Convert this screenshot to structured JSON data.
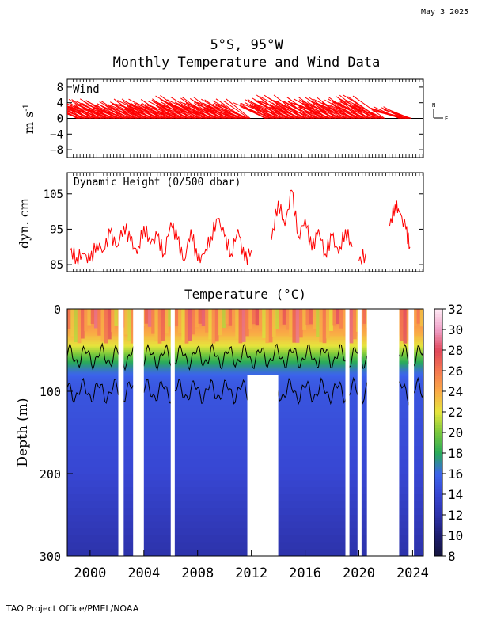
{
  "header": {
    "date": "May  3 2025",
    "title_location": "5°S, 95°W",
    "title_main": "Monthly Temperature and Wind Data"
  },
  "footer": {
    "credit": "TAO Project Office/PMEL/NOAA"
  },
  "chart_data": [
    {
      "type": "line",
      "panel": "wind",
      "title": "Wind",
      "ylabel": "m s",
      "ylabel_exp": "-1",
      "ylim": [
        -10,
        10
      ],
      "yticks": [
        8,
        4,
        0,
        -4,
        -8
      ],
      "ytick_labels": [
        "8",
        "4",
        "0",
        "−4",
        "−8"
      ],
      "compass": {
        "north": "N",
        "east": "E"
      },
      "color": "#ff0000",
      "note": "Monthly wind vectors (stick plot), predominantly southeasterly",
      "x_year": [
        1999.0,
        1999.5,
        2000.0,
        2000.5,
        2001.0,
        2001.5,
        2002.0,
        2002.5,
        2003.0,
        2003.5,
        2004.0,
        2004.5,
        2005.0,
        2005.5,
        2006.0,
        2006.5,
        2007.0,
        2007.5,
        2008.0,
        2008.5,
        2009.0,
        2009.5,
        2010.0,
        2010.5,
        2011.0,
        2011.5,
        2013.0,
        2013.5,
        2014.0,
        2014.5,
        2015.0,
        2015.5,
        2016.0,
        2016.5,
        2017.0,
        2017.5,
        2018.0,
        2018.5,
        2019.0,
        2019.5,
        2020.0,
        2020.5,
        2021.0,
        2021.5,
        2023.0,
        2023.5
      ],
      "u": [
        -3.5,
        -4.5,
        -3.0,
        -4.5,
        -3.5,
        -4.5,
        -3.0,
        -4.5,
        -3.5,
        -4.0,
        -3.0,
        -4.5,
        -3.5,
        -4.5,
        -3.0,
        -4.5,
        -3.5,
        -5.0,
        -3.0,
        -4.5,
        -3.5,
        -4.5,
        -3.0,
        -4.5,
        -3.5,
        -4.0,
        -3.0,
        -4.5,
        -3.5,
        -4.5,
        -3.0,
        -5.0,
        -3.5,
        -4.5,
        -3.0,
        -4.5,
        -3.5,
        -4.5,
        -3.0,
        -4.5,
        -3.5,
        -4.5,
        -3.0,
        -5.0,
        -3.5,
        -4.0
      ],
      "v": [
        4.0,
        5.0,
        3.5,
        5.0,
        4.0,
        5.0,
        3.5,
        4.5,
        4.0,
        5.0,
        3.5,
        5.0,
        4.0,
        5.0,
        3.5,
        5.0,
        4.5,
        6.0,
        4.0,
        5.5,
        4.0,
        5.5,
        3.5,
        5.0,
        4.0,
        5.0,
        4.0,
        5.0,
        4.5,
        6.0,
        4.0,
        6.0,
        4.5,
        5.5,
        4.0,
        5.5,
        4.5,
        5.5,
        4.0,
        5.5,
        4.5,
        6.0,
        4.0,
        6.0,
        3.0,
        2.5
      ]
    },
    {
      "type": "line",
      "panel": "dynamic_height",
      "title": "Dynamic Height (0/500 dbar)",
      "ylabel": "dyn. cm",
      "ylim": [
        83,
        111
      ],
      "yticks": [
        105,
        95,
        85
      ],
      "ytick_labels": [
        "105",
        "95",
        "85"
      ],
      "color": "#ff0000",
      "segments": [
        {
          "x": [
            1998.5,
            1999.0,
            1999.5,
            2000.0,
            2000.5,
            2001.0,
            2001.5,
            2002.0,
            2002.5,
            2003.0,
            2003.5,
            2004.0,
            2004.5,
            2005.0,
            2005.5,
            2006.0,
            2006.5,
            2007.0,
            2007.5,
            2008.0,
            2008.5,
            2009.0,
            2009.5,
            2010.0,
            2010.5,
            2011.0,
            2011.5,
            2012.0
          ],
          "y": [
            89,
            87,
            88,
            86,
            91,
            89,
            94,
            90,
            96,
            92,
            88,
            96,
            91,
            93,
            88,
            97,
            92,
            86,
            95,
            86,
            88,
            93,
            98,
            93,
            88,
            95,
            86,
            89
          ]
        },
        {
          "x": [
            2013.5,
            2014.0,
            2014.5,
            2015.0,
            2015.5,
            2016.0,
            2016.5,
            2017.0,
            2017.5,
            2018.0,
            2018.5,
            2019.0,
            2019.5
          ],
          "y": [
            92,
            103,
            96,
            106,
            93,
            98,
            89,
            95,
            88,
            93,
            88,
            95,
            90
          ]
        },
        {
          "x": [
            2020.0,
            2020.5
          ],
          "y": [
            86,
            88
          ]
        },
        {
          "x": [
            2022.3,
            2022.7,
            2023.0,
            2023.5,
            2023.8
          ],
          "y": [
            96,
            102,
            100,
            95,
            90
          ]
        }
      ]
    },
    {
      "type": "heatmap",
      "panel": "temperature",
      "title": "Temperature (°C)",
      "ylabel": "Depth (m)",
      "ylim": [
        300,
        0
      ],
      "yticks": [
        0,
        100,
        200,
        300
      ],
      "xlim": [
        1998.3,
        2024.8
      ],
      "xticks": [
        2000,
        2004,
        2008,
        2012,
        2016,
        2020,
        2024
      ],
      "colorbar": {
        "ticks": [
          32,
          30,
          28,
          26,
          24,
          22,
          20,
          18,
          16,
          14,
          12,
          10,
          8
        ],
        "range": [
          8,
          32
        ]
      },
      "depth_profile": {
        "depth_m": [
          0,
          15,
          30,
          45,
          55,
          65,
          75,
          85,
          100,
          150,
          200,
          250,
          300
        ],
        "temp_c": [
          26,
          25,
          24,
          22,
          20,
          18,
          16.5,
          15.5,
          15,
          14.5,
          14,
          13,
          12
        ]
      },
      "gaps_full_depth": [
        [
          2002.1,
          2002.5
        ],
        [
          2003.2,
          2004.0
        ],
        [
          2006.0,
          2006.3
        ],
        [
          2019.0,
          2019.3
        ],
        [
          2019.9,
          2020.2
        ],
        [
          2020.6,
          2023.0
        ],
        [
          2023.7,
          2024.1
        ]
      ],
      "gaps_partial": [
        {
          "x": [
            2011.7,
            2014.0
          ],
          "depth_from_m": 80,
          "depth_to_m": 300
        }
      ]
    }
  ]
}
